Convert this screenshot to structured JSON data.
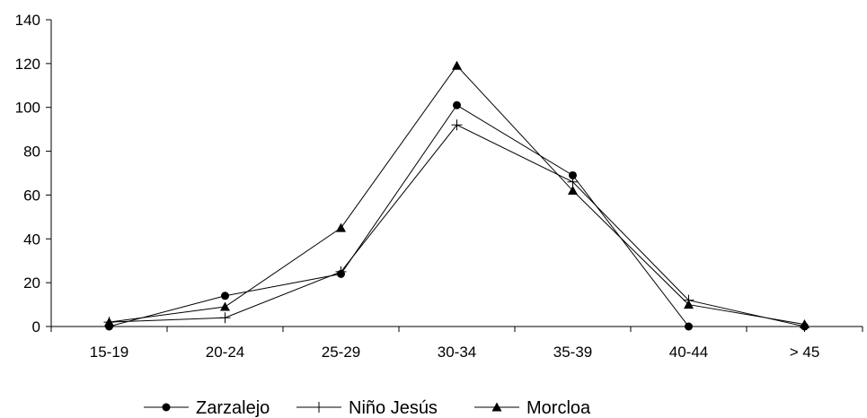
{
  "chart_data": {
    "type": "line",
    "categories": [
      "15-19",
      "20-24",
      "25-29",
      "30-34",
      "35-39",
      "40-44",
      "> 45"
    ],
    "ylim": [
      0,
      140
    ],
    "yticks": [
      0,
      20,
      40,
      60,
      80,
      100,
      120,
      140
    ],
    "grid": false,
    "legend_position": "bottom",
    "series": [
      {
        "name": "Zarzalejo",
        "marker": "circle",
        "values": [
          0,
          14,
          24,
          101,
          69,
          0,
          0
        ]
      },
      {
        "name": "Niño Jesús",
        "marker": "plus",
        "values": [
          2,
          4,
          25,
          92,
          66,
          12,
          0
        ]
      },
      {
        "name": "Morcloa",
        "marker": "triangle",
        "values": [
          2,
          9,
          45,
          119,
          62,
          10,
          1
        ]
      }
    ],
    "colors": {
      "line": "#000000",
      "axis": "#000000"
    }
  }
}
